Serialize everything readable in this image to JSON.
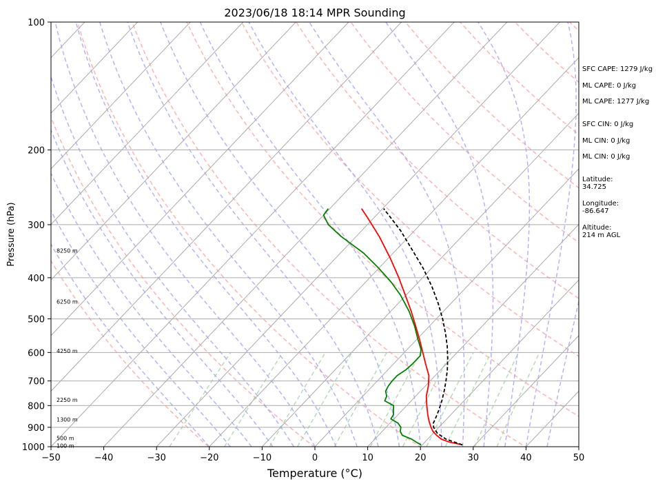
{
  "chart_data": {
    "type": "line",
    "title": "2023/06/18 18:14 MPR Sounding",
    "xlabel": "Temperature (°C)",
    "ylabel": "Pressure (hPa)",
    "xlim": [
      -50,
      50
    ],
    "ylim": [
      1000,
      100
    ],
    "y_scale": "log",
    "grid": true,
    "x_ticks": [
      "−50",
      "−40",
      "−30",
      "−20",
      "−10",
      "0",
      "10",
      "20",
      "30",
      "40",
      "50"
    ],
    "y_ticks": [
      "100",
      "200",
      "300",
      "400",
      "500",
      "600",
      "700",
      "800",
      "900",
      "1000"
    ],
    "x_tick_values": [
      -50,
      -40,
      -30,
      -20,
      -10,
      0,
      10,
      20,
      30,
      40,
      50
    ],
    "y_tick_values": [
      100,
      200,
      300,
      400,
      500,
      600,
      700,
      800,
      900,
      1000
    ],
    "height_labels": [
      {
        "p": 345,
        "label": "8250 m"
      },
      {
        "p": 455,
        "label": "6250 m"
      },
      {
        "p": 595,
        "label": "4250 m"
      },
      {
        "p": 775,
        "label": "2250 m"
      },
      {
        "p": 862,
        "label": "1300 m"
      },
      {
        "p": 955,
        "label": "500 m"
      },
      {
        "p": 995,
        "label": "100 m"
      }
    ],
    "series": [
      {
        "color": "#ff0000",
        "points": [
          [
            990,
            27.6
          ],
          [
            975,
            24.6
          ],
          [
            960,
            22.6
          ],
          [
            940,
            21.0
          ],
          [
            920,
            19.6
          ],
          [
            900,
            18.5
          ],
          [
            870,
            17.0
          ],
          [
            840,
            15.6
          ],
          [
            800,
            13.8
          ],
          [
            760,
            12.0
          ],
          [
            720,
            10.6
          ],
          [
            680,
            8.8
          ],
          [
            640,
            6.2
          ],
          [
            600,
            3.5
          ],
          [
            560,
            0.6
          ],
          [
            520,
            -2.6
          ],
          [
            480,
            -6.1
          ],
          [
            440,
            -10.1
          ],
          [
            400,
            -14.5
          ],
          [
            360,
            -19.6
          ],
          [
            320,
            -25.6
          ],
          [
            290,
            -31.0
          ],
          [
            275,
            -34.0
          ]
        ]
      },
      {
        "color": "#008000",
        "points": [
          [
            990,
            19.8
          ],
          [
            980,
            18.8
          ],
          [
            960,
            17.0
          ],
          [
            940,
            14.5
          ],
          [
            920,
            13.4
          ],
          [
            900,
            12.8
          ],
          [
            880,
            11.5
          ],
          [
            860,
            9.4
          ],
          [
            840,
            9.1
          ],
          [
            820,
            8.3
          ],
          [
            800,
            7.5
          ],
          [
            780,
            5.0
          ],
          [
            760,
            4.5
          ],
          [
            740,
            3.4
          ],
          [
            720,
            3.0
          ],
          [
            700,
            2.8
          ],
          [
            680,
            2.8
          ],
          [
            660,
            3.4
          ],
          [
            640,
            3.6
          ],
          [
            610,
            3.6
          ],
          [
            590,
            2.6
          ],
          [
            560,
            0.3
          ],
          [
            520,
            -2.8
          ],
          [
            480,
            -6.5
          ],
          [
            440,
            -11.0
          ],
          [
            410,
            -15.1
          ],
          [
            380,
            -20.0
          ],
          [
            350,
            -25.6
          ],
          [
            320,
            -32.8
          ],
          [
            300,
            -37.4
          ],
          [
            285,
            -40.0
          ],
          [
            275,
            -40.3
          ]
        ]
      },
      {
        "color": "#000000",
        "dashed": true,
        "points": [
          [
            990,
            27.6
          ],
          [
            960,
            23.5
          ],
          [
            930,
            20.8
          ],
          [
            900,
            19.0
          ],
          [
            880,
            18.2
          ],
          [
            860,
            17.8
          ],
          [
            820,
            16.9
          ],
          [
            780,
            15.8
          ],
          [
            740,
            14.5
          ],
          [
            700,
            13.0
          ],
          [
            660,
            11.3
          ],
          [
            620,
            9.3
          ],
          [
            580,
            7.0
          ],
          [
            540,
            4.3
          ],
          [
            500,
            1.2
          ],
          [
            460,
            -2.4
          ],
          [
            420,
            -6.6
          ],
          [
            380,
            -11.6
          ],
          [
            340,
            -17.6
          ],
          [
            310,
            -22.6
          ],
          [
            290,
            -26.6
          ],
          [
            275,
            -29.8
          ]
        ]
      }
    ]
  },
  "side_panel": {
    "sfc_cape": "SFC CAPE: 1279 J/kg",
    "ml_cape_1": "ML CAPE: 0 J/kg",
    "ml_cape_2": "ML CAPE: 1277 J/kg",
    "sfc_cin": "SFC CIN: 0 J/kg",
    "ml_cin_1": "ML CIN: 0 J/kg",
    "ml_cin_2": "ML CIN: 0 J/kg",
    "latitude_label": "Latitude:",
    "latitude_value": "34.725",
    "longitude_label": "Longitude:",
    "longitude_value": "-86.647",
    "altitude_label": "Altitude:",
    "altitude_value": "214 m AGL"
  },
  "colors": {
    "dry_adiabat": "#ff9999",
    "moist_adiabat": "#9999ff",
    "mixing_ratio": "#99cc99",
    "isotherm": "#aaaaaa",
    "isobar": "#aaaaaa"
  }
}
